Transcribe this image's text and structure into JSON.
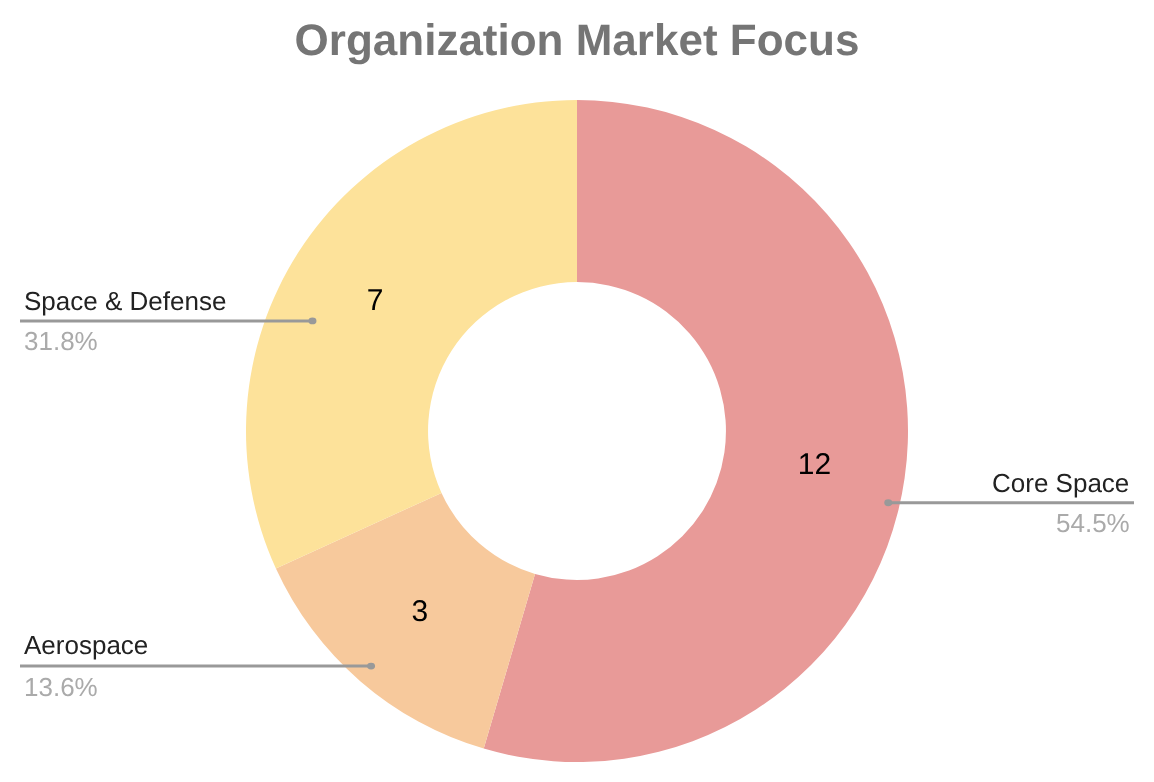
{
  "chart_data": {
    "type": "donut",
    "title": "Organization Market Focus",
    "categories": [
      "Core Space",
      "Aerospace",
      "Space & Defense"
    ],
    "values": [
      12,
      3,
      7
    ],
    "colors": [
      "#e89a98",
      "#f7c99c",
      "#fde29a"
    ],
    "data_labels": true,
    "annotations": [
      "54.5%",
      "13.6%",
      "31.8%"
    ]
  }
}
